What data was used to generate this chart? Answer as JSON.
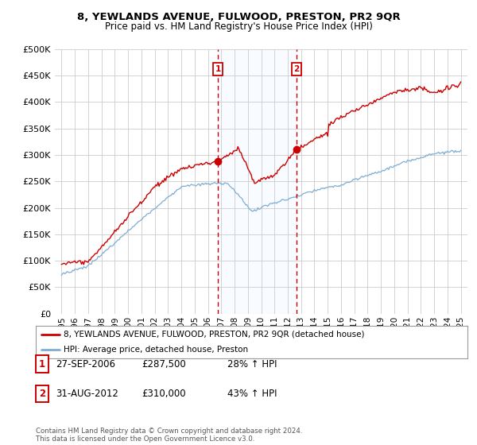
{
  "title": "8, YEWLANDS AVENUE, FULWOOD, PRESTON, PR2 9QR",
  "subtitle": "Price paid vs. HM Land Registry's House Price Index (HPI)",
  "legend_line1": "8, YEWLANDS AVENUE, FULWOOD, PRESTON, PR2 9QR (detached house)",
  "legend_line2": "HPI: Average price, detached house, Preston",
  "annotation1_date": "27-SEP-2006",
  "annotation1_price": "£287,500",
  "annotation1_hpi": "28% ↑ HPI",
  "annotation2_date": "31-AUG-2012",
  "annotation2_price": "£310,000",
  "annotation2_hpi": "43% ↑ HPI",
  "footer": "Contains HM Land Registry data © Crown copyright and database right 2024.\nThis data is licensed under the Open Government Licence v3.0.",
  "red_color": "#cc0000",
  "blue_color": "#7dadd4",
  "shaded_color": "#ddeeff",
  "annotation_box_color": "#cc0000",
  "grid_color": "#cccccc",
  "background_color": "#ffffff",
  "ylim": [
    0,
    500000
  ],
  "yticks": [
    0,
    50000,
    100000,
    150000,
    200000,
    250000,
    300000,
    350000,
    400000,
    450000,
    500000
  ],
  "sale1_year": 2006.75,
  "sale1_price": 287500,
  "sale2_year": 2012.67,
  "sale2_price": 310000
}
